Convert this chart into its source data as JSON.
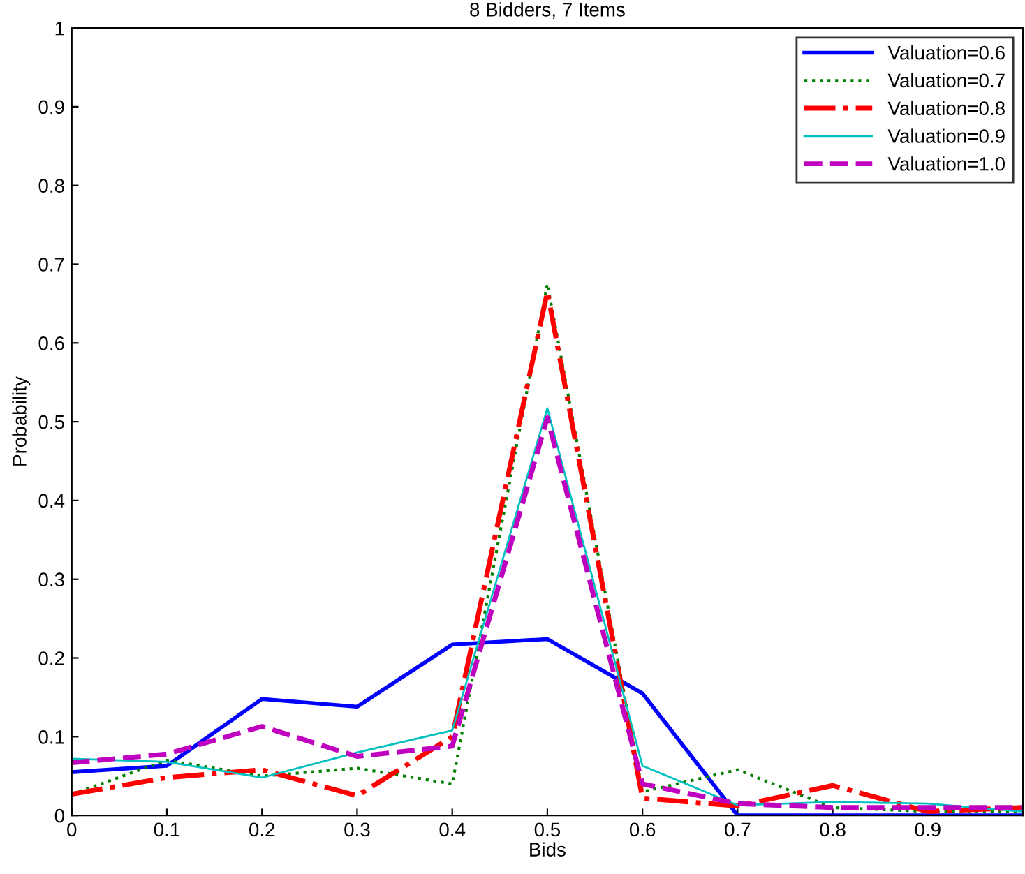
{
  "chart_data": {
    "type": "line",
    "title": "8 Bidders, 7 Items",
    "xlabel": "Bids",
    "ylabel": "Probability",
    "x": [
      0,
      0.1,
      0.2,
      0.3,
      0.4,
      0.5,
      0.6,
      0.7,
      0.8,
      0.9,
      1.0
    ],
    "series": [
      {
        "name": "Valuation=0.6",
        "color": "#0000ff",
        "line_style": "solid",
        "values": [
          0.055,
          0.063,
          0.148,
          0.138,
          0.217,
          0.224,
          0.155,
          0.0,
          0.0,
          0.0,
          0.0
        ]
      },
      {
        "name": "Valuation=0.7",
        "color": "#007f00",
        "line_style": "dotted",
        "values": [
          0.027,
          0.07,
          0.05,
          0.06,
          0.04,
          0.675,
          0.03,
          0.058,
          0.01,
          0.005,
          0.005
        ]
      },
      {
        "name": "Valuation=0.8",
        "color": "#ff0000",
        "line_style": "dashdot",
        "values": [
          0.027,
          0.048,
          0.058,
          0.025,
          0.1,
          0.665,
          0.022,
          0.012,
          0.038,
          0.005,
          0.01
        ]
      },
      {
        "name": "Valuation=0.9",
        "color": "#00bfbf",
        "line_style": "solid",
        "values": [
          0.072,
          0.068,
          0.048,
          0.08,
          0.108,
          0.517,
          0.063,
          0.013,
          0.017,
          0.015,
          0.005
        ]
      },
      {
        "name": "Valuation=1.0",
        "color": "#bf00bf",
        "line_style": "dashed",
        "values": [
          0.067,
          0.078,
          0.113,
          0.075,
          0.088,
          0.505,
          0.04,
          0.015,
          0.01,
          0.01,
          0.01
        ]
      }
    ],
    "xlim": [
      0,
      1
    ],
    "ylim": [
      0,
      1
    ],
    "xticks": [
      0,
      0.1,
      0.2,
      0.3,
      0.4,
      0.5,
      0.6,
      0.7,
      0.8,
      0.9
    ],
    "yticks": [
      0,
      0.1,
      0.2,
      0.3,
      0.4,
      0.5,
      0.6,
      0.7,
      0.8,
      0.9,
      1
    ],
    "grid": false,
    "legend": "top right"
  }
}
